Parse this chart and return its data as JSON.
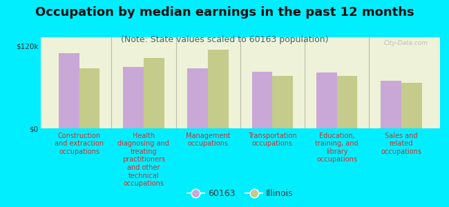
{
  "title": "Occupation by median earnings in the past 12 months",
  "subtitle": "(Note: State values scaled to 60163 population)",
  "background_outer": "#00eeff",
  "background_plot": "#eef2d8",
  "categories": [
    "Construction\nand extraction\noccupations",
    "Health\ndiagnosing and\ntreating\npractitioners\nand other\ntechnical\noccupations",
    "Management\noccupations",
    "Transportation\noccupations",
    "Education,\ntraining, and\nlibrary\noccupations",
    "Sales and\nrelated\noccupations"
  ],
  "values_60163": [
    110000,
    90000,
    88000,
    83000,
    82000,
    70000
  ],
  "values_illinois": [
    88000,
    103000,
    115000,
    77000,
    77000,
    67000
  ],
  "color_60163": "#c9a8d8",
  "color_illinois": "#c5cb8a",
  "ylim": [
    0,
    133000
  ],
  "yticks": [
    0,
    120000
  ],
  "ytick_labels": [
    "$0",
    "$120k"
  ],
  "legend_label_1": "60163",
  "legend_label_2": "Illinois",
  "watermark": "City-Data.com",
  "title_fontsize": 13,
  "subtitle_fontsize": 9,
  "tick_label_fontsize": 7.5,
  "legend_fontsize": 9,
  "xlabel_fontsize": 7,
  "xlabel_color": "#cc3333"
}
